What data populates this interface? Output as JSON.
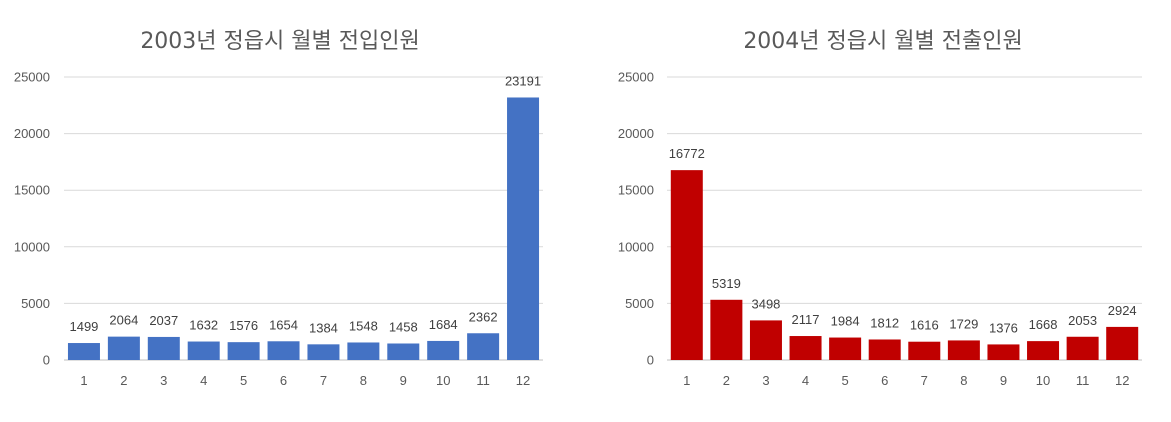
{
  "chart_data": [
    {
      "type": "bar",
      "title": "2003년 정읍시 월별 전입인원",
      "xlabel": "",
      "ylabel": "",
      "categories": [
        "1",
        "2",
        "3",
        "4",
        "5",
        "6",
        "7",
        "8",
        "9",
        "10",
        "11",
        "12"
      ],
      "values": [
        1499,
        2064,
        2037,
        1632,
        1576,
        1654,
        1384,
        1548,
        1458,
        1684,
        2362,
        23191
      ],
      "ylim": [
        0,
        25000
      ],
      "yticks": [
        "0",
        "5000",
        "10000",
        "15000",
        "20000",
        "25000"
      ],
      "grid": true,
      "legend": "none",
      "color": "#4472c4"
    },
    {
      "type": "bar",
      "title": "2004년 정읍시 월별 전출인원",
      "xlabel": "",
      "ylabel": "",
      "categories": [
        "1",
        "2",
        "3",
        "4",
        "5",
        "6",
        "7",
        "8",
        "9",
        "10",
        "11",
        "12"
      ],
      "values": [
        16772,
        5319,
        3498,
        2117,
        1984,
        1812,
        1616,
        1729,
        1376,
        1668,
        2053,
        2924
      ],
      "ylim": [
        0,
        25000
      ],
      "yticks": [
        "0",
        "5000",
        "10000",
        "15000",
        "20000",
        "25000"
      ],
      "grid": true,
      "legend": "none",
      "color": "#c00000"
    }
  ]
}
